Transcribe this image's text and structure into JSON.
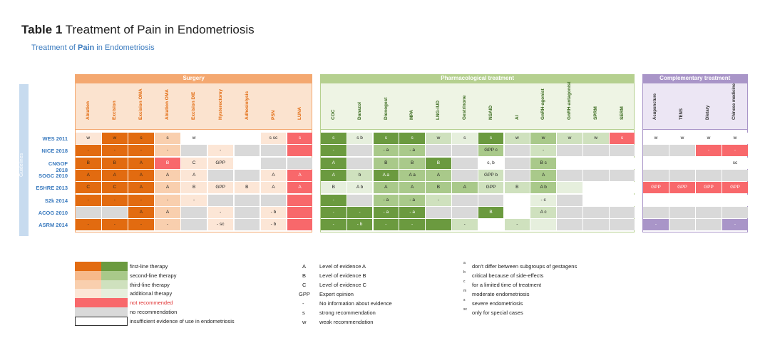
{
  "title": {
    "bold": "Table 1",
    "rest": "Treatment of Pain in Endometriosis"
  },
  "subtitle": {
    "a": "Treatment of ",
    "b": "Pain",
    "c": " in Endometriosis"
  },
  "guidelines_label": "Guidelines",
  "colors": {
    "orange1": "#e26b10",
    "orange2": "#f7b98a",
    "orange3": "#f9cfae",
    "orange4": "#fce6d6",
    "green1": "#6b9a3f",
    "green2": "#a9c98a",
    "green3": "#cfe1be",
    "green4": "#e6efdd",
    "red": "#f8686b",
    "grey": "#d9d9d9",
    "purple": "#a995c8",
    "white": "#ffffff",
    "surgery_hdr": "#f4a870",
    "pharma_hdr": "#b5d08f",
    "comp_hdr": "#a995c8"
  },
  "groups": [
    {
      "name": "Surgery",
      "color": "surgery_hdr",
      "start": 0,
      "end": 8
    },
    {
      "name": "Pharmacological treatment",
      "color": "pharma_hdr",
      "start": 9,
      "end": 20
    },
    {
      "name": "Complementary treatment",
      "color": "comp_hdr",
      "start": 21,
      "end": 24
    }
  ],
  "columns": [
    "Ablation",
    "Excision",
    "Excision OMA",
    "Ablation OMA",
    "Excision DIE",
    "Hysterectomy",
    "Adhesiolysis",
    "PSN",
    "LUNA",
    "COC",
    "Danazol",
    "Dienogest",
    "MPA",
    "LNG-IUD",
    "Gestrinone",
    "NSAID",
    "AI",
    "GnRH-agonist",
    "GnRH-antagonist",
    "SPRM",
    "SERM",
    "Acupuncture",
    "TENS",
    "Dietary",
    "Chinese medicine"
  ],
  "column_colored": [
    true,
    true,
    true,
    true,
    true,
    true,
    true,
    true,
    true,
    false,
    false,
    false,
    false,
    false,
    false,
    false,
    false,
    false,
    false,
    false,
    false,
    false,
    false,
    false,
    false
  ],
  "rows": [
    {
      "label": "WES 2011",
      "cells": [
        [
          "orange4",
          "w"
        ],
        [
          "orange1",
          "w"
        ],
        [
          "orange1",
          "s"
        ],
        [
          "orange3",
          "s"
        ],
        [
          "white",
          "w"
        ],
        [
          "white",
          ""
        ],
        [
          "white",
          ""
        ],
        [
          "orange4",
          "s sc"
        ],
        [
          "red",
          "s"
        ],
        [
          "green1",
          "s"
        ],
        [
          "green4",
          "s b"
        ],
        [
          "green1",
          "s"
        ],
        [
          "green1",
          "s"
        ],
        [
          "green3",
          "w"
        ],
        [
          "green4",
          "s"
        ],
        [
          "green1",
          "s"
        ],
        [
          "green3",
          "w"
        ],
        [
          "green2",
          "w"
        ],
        [
          "green3",
          "w"
        ],
        [
          "green3",
          "w"
        ],
        [
          "red",
          "s"
        ],
        [
          "white",
          "w"
        ],
        [
          "white",
          "w"
        ],
        [
          "white",
          "w"
        ],
        [
          "white",
          "w"
        ]
      ]
    },
    {
      "label": "NICE 2018",
      "cells": [
        [
          "orange1",
          "-"
        ],
        [
          "orange1",
          "-"
        ],
        [
          "orange1",
          "-"
        ],
        [
          "orange3",
          "-"
        ],
        [
          "grey",
          ""
        ],
        [
          "orange4",
          "-"
        ],
        [
          "grey",
          ""
        ],
        [
          "grey",
          ""
        ],
        [
          "red",
          ""
        ],
        [
          "green1",
          "-"
        ],
        [
          "grey",
          ""
        ],
        [
          "green2",
          "- a"
        ],
        [
          "green2",
          "- a"
        ],
        [
          "grey",
          ""
        ],
        [
          "grey",
          ""
        ],
        [
          "green2",
          "GPP c"
        ],
        [
          "grey",
          ""
        ],
        [
          "green3",
          "-"
        ],
        [
          "grey",
          ""
        ],
        [
          "grey",
          ""
        ],
        [
          "grey",
          ""
        ],
        [
          "grey",
          ""
        ],
        [
          "grey",
          ""
        ],
        [
          "red",
          "-"
        ],
        [
          "red",
          "-"
        ]
      ]
    },
    {
      "label": "CNGOF 2018",
      "cells": [
        [
          "orange1",
          "B"
        ],
        [
          "orange1",
          "B"
        ],
        [
          "orange1",
          "A"
        ],
        [
          "red",
          "B"
        ],
        [
          "orange4",
          "C"
        ],
        [
          "orange4",
          "GPP"
        ],
        [
          "white",
          ""
        ],
        [
          "grey",
          ""
        ],
        [
          "grey",
          ""
        ],
        [
          "green1",
          "A"
        ],
        [
          "grey",
          ""
        ],
        [
          "green2",
          "B"
        ],
        [
          "green2",
          "B"
        ],
        [
          "green1",
          "B"
        ],
        [
          "grey",
          ""
        ],
        [
          "white",
          "c, b"
        ],
        [
          "grey",
          ""
        ],
        [
          "green2",
          "B c"
        ],
        [
          "white",
          ""
        ],
        [
          "white",
          ""
        ],
        [
          "white",
          ""
        ],
        [
          "white",
          ""
        ],
        [
          "white",
          ""
        ],
        [
          "white",
          ""
        ],
        [
          "white",
          "sc"
        ]
      ]
    },
    {
      "label": "SOGC 2010",
      "cells": [
        [
          "orange1",
          "A"
        ],
        [
          "orange1",
          "A"
        ],
        [
          "orange1",
          "A"
        ],
        [
          "orange3",
          "A"
        ],
        [
          "orange4",
          "A"
        ],
        [
          "grey",
          ""
        ],
        [
          "grey",
          ""
        ],
        [
          "orange4",
          "A"
        ],
        [
          "red",
          "A"
        ],
        [
          "green1",
          "A"
        ],
        [
          "green3",
          "b"
        ],
        [
          "green1",
          "A a"
        ],
        [
          "green2",
          "A a"
        ],
        [
          "green2",
          "A"
        ],
        [
          "grey",
          ""
        ],
        [
          "green3",
          "GPP b"
        ],
        [
          "grey",
          ""
        ],
        [
          "green2",
          "A"
        ],
        [
          "grey",
          ""
        ],
        [
          "grey",
          ""
        ],
        [
          "grey",
          ""
        ],
        [
          "grey",
          ""
        ],
        [
          "grey",
          ""
        ],
        [
          "grey",
          ""
        ],
        [
          "grey",
          ""
        ]
      ]
    },
    {
      "label": "ESHRE 2013",
      "cells": [
        [
          "orange1",
          "C"
        ],
        [
          "orange1",
          "C"
        ],
        [
          "orange1",
          "A"
        ],
        [
          "orange3",
          "A"
        ],
        [
          "orange4",
          "B"
        ],
        [
          "orange4",
          "GPP"
        ],
        [
          "orange4",
          "B"
        ],
        [
          "orange4",
          "A"
        ],
        [
          "red",
          "A"
        ],
        [
          "green4",
          "B"
        ],
        [
          "green4",
          "A b"
        ],
        [
          "green2",
          "A"
        ],
        [
          "green2",
          "A"
        ],
        [
          "green2",
          "B"
        ],
        [
          "green2",
          "A"
        ],
        [
          "green3",
          "GPP"
        ],
        [
          "green3",
          "B"
        ],
        [
          "green2",
          "A b"
        ],
        [
          "green4",
          ""
        ],
        [
          "white",
          ""
        ],
        [
          "white",
          ""
        ],
        [
          "red",
          "GPP"
        ],
        [
          "red",
          "GPP"
        ],
        [
          "red",
          "GPP"
        ],
        [
          "red",
          "GPP"
        ]
      ]
    },
    {
      "label": "S2k 2014",
      "cells": [
        [
          "orange1",
          "-"
        ],
        [
          "orange1",
          "-"
        ],
        [
          "orange1",
          "-"
        ],
        [
          "orange3",
          "-"
        ],
        [
          "orange4",
          "-"
        ],
        [
          "grey",
          ""
        ],
        [
          "grey",
          ""
        ],
        [
          "grey",
          ""
        ],
        [
          "red",
          ""
        ],
        [
          "green1",
          "-"
        ],
        [
          "grey",
          ""
        ],
        [
          "green2",
          "- a"
        ],
        [
          "green2",
          "- a"
        ],
        [
          "green3",
          "-"
        ],
        [
          "grey",
          ""
        ],
        [
          "grey",
          ""
        ],
        [
          "white",
          ""
        ],
        [
          "green4",
          "- c"
        ],
        [
          "grey",
          ""
        ],
        [
          "white",
          ""
        ],
        [
          "white",
          ""
        ],
        [
          "white",
          ""
        ],
        [
          "white",
          ""
        ],
        [
          "white",
          ""
        ],
        [
          "white",
          ""
        ]
      ]
    },
    {
      "label": "ACOG 2010",
      "cells": [
        [
          "grey",
          ""
        ],
        [
          "grey",
          ""
        ],
        [
          "orange1",
          "A"
        ],
        [
          "orange3",
          "A"
        ],
        [
          "grey",
          ""
        ],
        [
          "orange4",
          "-"
        ],
        [
          "grey",
          ""
        ],
        [
          "orange4",
          "- b"
        ],
        [
          "red",
          ""
        ],
        [
          "green1",
          "-"
        ],
        [
          "green1",
          "-"
        ],
        [
          "green1",
          "- a"
        ],
        [
          "green1",
          "- a"
        ],
        [
          "grey",
          ""
        ],
        [
          "grey",
          ""
        ],
        [
          "green1",
          "B"
        ],
        [
          "white",
          ""
        ],
        [
          "green3",
          "A c"
        ],
        [
          "grey",
          ""
        ],
        [
          "grey",
          ""
        ],
        [
          "grey",
          ""
        ],
        [
          "grey",
          ""
        ],
        [
          "grey",
          ""
        ],
        [
          "grey",
          ""
        ],
        [
          "grey",
          ""
        ]
      ]
    },
    {
      "label": "ASRM 2014",
      "cells": [
        [
          "orange1",
          "-"
        ],
        [
          "orange1",
          "-"
        ],
        [
          "orange1",
          "-"
        ],
        [
          "orange3",
          "-"
        ],
        [
          "grey",
          ""
        ],
        [
          "orange4",
          "- sc"
        ],
        [
          "grey",
          ""
        ],
        [
          "orange4",
          "- b"
        ],
        [
          "red",
          ""
        ],
        [
          "green1",
          "-"
        ],
        [
          "green1",
          "- b"
        ],
        [
          "green1",
          "-"
        ],
        [
          "green1",
          "-"
        ],
        [
          "green1",
          ""
        ],
        [
          "green3",
          "-"
        ],
        [
          "white",
          ""
        ],
        [
          "green3",
          "-"
        ],
        [
          "green4",
          ""
        ],
        [
          "grey",
          ""
        ],
        [
          "grey",
          ""
        ],
        [
          "grey",
          ""
        ],
        [
          "purple",
          "-"
        ],
        [
          "grey",
          ""
        ],
        [
          "grey",
          ""
        ],
        [
          "purple",
          "-"
        ]
      ]
    }
  ],
  "legend": {
    "therapy": [
      {
        "c1": "orange1",
        "c2": "green1",
        "text": "first-line therapy"
      },
      {
        "c1": "orange2",
        "c2": "green2",
        "text": "second-line therapy"
      },
      {
        "c1": "orange3",
        "c2": "green3",
        "text": "third-line therapy"
      },
      {
        "c1": "orange4",
        "c2": "green4",
        "text": "additional therapy"
      },
      {
        "c1": "red",
        "c2": "red",
        "text": "not recommended",
        "red": true
      },
      {
        "c1": "grey",
        "c2": "grey",
        "text": "no recommendation"
      },
      {
        "c1": "white",
        "c2": "white",
        "text": "insufficient evidence of use in endometriosis",
        "border": true
      }
    ],
    "evidence": [
      {
        "k": "A",
        "v": "Level of evidence A"
      },
      {
        "k": "B",
        "v": "Level of evidence B"
      },
      {
        "k": "C",
        "v": "Level of evidence C"
      },
      {
        "k": "GPP",
        "v": "Expert opinion"
      },
      {
        "k": "-",
        "v": "No information about evidence"
      },
      {
        "k": "s",
        "v": "strong recommendation"
      },
      {
        "k": "w",
        "v": "weak recommendation"
      }
    ],
    "notes": [
      {
        "k": "a",
        "v": "don't differ between subgroups of gestagens"
      },
      {
        "k": "b",
        "v": "critical because of side-effects"
      },
      {
        "k": "c",
        "v": "for a limited time of treatment"
      },
      {
        "k": "m",
        "v": "moderate endometriosis"
      },
      {
        "k": "s",
        "v": "severe endometriosis"
      },
      {
        "k": "sc",
        "v": "only for special cases"
      }
    ]
  }
}
